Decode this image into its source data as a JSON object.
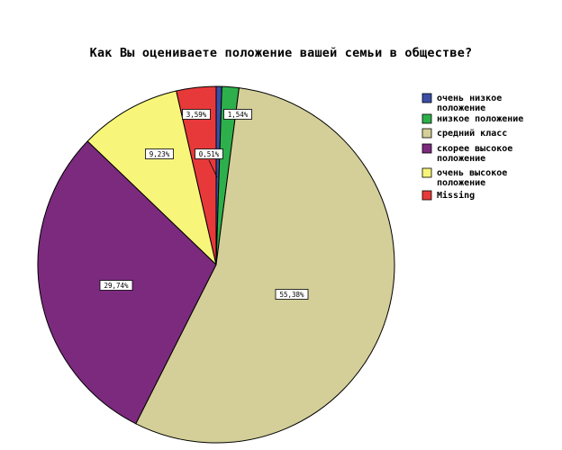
{
  "chart_data": {
    "type": "pie",
    "title": "Как Вы оцениваете положение вашей семьи в обществе?",
    "slices": [
      {
        "name": "очень низкое положение",
        "legend_lines": [
          "очень низкое",
          "положение"
        ],
        "value": 0.51,
        "label": "0,51%",
        "color": "#3b4ea6"
      },
      {
        "name": "низкое положение",
        "legend_lines": [
          "низкое положение"
        ],
        "value": 1.54,
        "label": "1,54%",
        "color": "#2db04b"
      },
      {
        "name": "средний класс",
        "legend_lines": [
          "средний класс"
        ],
        "value": 55.38,
        "label": "55,38%",
        "color": "#d4cf98"
      },
      {
        "name": "скорее высокое положение",
        "legend_lines": [
          "скорее высокое",
          "положение"
        ],
        "value": 29.74,
        "label": "29,74%",
        "color": "#7b2a7e"
      },
      {
        "name": "очень высокое положение",
        "legend_lines": [
          "очень высокое",
          "положение"
        ],
        "value": 9.23,
        "label": "9,23%",
        "color": "#f8f67a"
      },
      {
        "name": "Missing",
        "legend_lines": [
          "Missing"
        ],
        "value": 3.59,
        "label": "3,59%",
        "color": "#e8393a"
      }
    ],
    "start_angle_deg": 0,
    "direction": "clockwise",
    "legend_position": "top-right"
  }
}
